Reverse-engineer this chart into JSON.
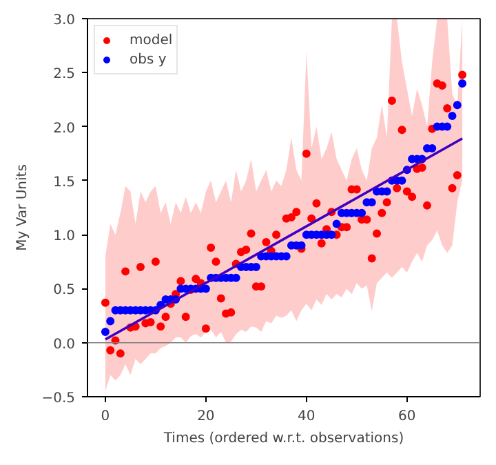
{
  "chart_data": {
    "type": "scatter",
    "xlabel": "Times (ordered w.r.t. observations)",
    "ylabel": "My Var Units",
    "x": [
      0,
      1,
      2,
      3,
      4,
      5,
      6,
      7,
      8,
      9,
      10,
      11,
      12,
      13,
      14,
      15,
      16,
      17,
      18,
      19,
      20,
      21,
      22,
      23,
      24,
      25,
      26,
      27,
      28,
      29,
      30,
      31,
      32,
      33,
      34,
      35,
      36,
      37,
      38,
      39,
      40,
      41,
      42,
      43,
      44,
      45,
      46,
      47,
      48,
      49,
      50,
      51,
      52,
      53,
      54,
      55,
      56,
      57,
      58,
      59,
      60,
      61,
      62,
      63,
      64,
      65,
      66,
      67,
      68,
      69,
      70,
      71
    ],
    "xlim": [
      -3.55,
      74.55
    ],
    "xticks": [
      0,
      20,
      40,
      60
    ],
    "ylim": [
      -0.5,
      3.0
    ],
    "yticks": [
      {
        "value": -0.5,
        "label": "−0.5"
      },
      {
        "value": 0,
        "label": "0.0"
      },
      {
        "value": 0.5,
        "label": "0.5"
      },
      {
        "value": 1,
        "label": "1.0"
      },
      {
        "value": 1.5,
        "label": "1.5"
      },
      {
        "value": 2,
        "label": "2.0"
      },
      {
        "value": 2.5,
        "label": "2.5"
      },
      {
        "value": 3,
        "label": "3.0"
      }
    ],
    "grid": false,
    "legend": "top left",
    "marker": "circle",
    "ref_lines": [
      {
        "axis": "y",
        "value": 0,
        "color": "#808080"
      }
    ],
    "series": [
      {
        "name": "model",
        "color": "#ff0000",
        "values": [
          0.37,
          -0.07,
          0.02,
          -0.1,
          0.66,
          0.14,
          0.15,
          0.7,
          0.18,
          0.19,
          0.75,
          0.15,
          0.24,
          0.36,
          0.45,
          0.57,
          0.24,
          0.49,
          0.59,
          0.55,
          0.13,
          0.88,
          0.75,
          0.41,
          0.27,
          0.28,
          0.73,
          0.84,
          0.86,
          1.01,
          0.52,
          0.52,
          0.93,
          0.85,
          1.0,
          null,
          1.15,
          1.16,
          1.21,
          0.87,
          1.75,
          1.15,
          1.29,
          0.92,
          1.05,
          1.21,
          1.0,
          1.07,
          1.07,
          1.42,
          1.42,
          1.14,
          1.14,
          0.78,
          1.01,
          1.2,
          1.3,
          2.24,
          1.43,
          1.97,
          1.4,
          1.35,
          1.61,
          1.62,
          1.27,
          1.98,
          2.4,
          2.38,
          2.17,
          1.43,
          1.55,
          2.48
        ],
        "upper": [
          0.8,
          1.1,
          1.0,
          1.2,
          1.45,
          1.4,
          1.1,
          1.4,
          1.3,
          1.4,
          1.45,
          1.2,
          1.3,
          1.1,
          1.3,
          1.2,
          1.35,
          1.2,
          1.3,
          1.2,
          1.4,
          1.5,
          1.3,
          1.4,
          1.5,
          1.3,
          1.6,
          1.4,
          1.5,
          1.7,
          1.4,
          1.5,
          1.6,
          1.4,
          1.5,
          1.45,
          1.6,
          1.9,
          1.6,
          1.5,
          2.7,
          1.8,
          2.0,
          1.7,
          1.8,
          1.95,
          1.7,
          1.6,
          1.5,
          1.7,
          1.8,
          1.6,
          1.5,
          1.8,
          1.9,
          2.2,
          1.9,
          3.0,
          3.0,
          2.6,
          2.35,
          2.1,
          2.35,
          2.2,
          2.0,
          2.6,
          3.0,
          3.0,
          3.0,
          2.3,
          2.2,
          3.0
        ],
        "lower": [
          -0.45,
          -0.3,
          -0.35,
          -0.3,
          -0.2,
          -0.3,
          -0.15,
          -0.2,
          -0.15,
          -0.1,
          -0.1,
          -0.05,
          -0.03,
          0.0,
          0.05,
          0.05,
          0.0,
          0.06,
          0.08,
          0.05,
          0.1,
          0.12,
          0.05,
          0.1,
          0.0,
          0.01,
          0.08,
          0.12,
          0.1,
          0.15,
          0.14,
          0.1,
          0.2,
          0.18,
          0.25,
          0.23,
          0.25,
          0.3,
          0.2,
          0.3,
          0.36,
          0.3,
          0.4,
          0.35,
          0.45,
          0.4,
          0.45,
          0.42,
          0.5,
          0.45,
          0.55,
          0.5,
          0.53,
          0.29,
          0.55,
          0.6,
          0.65,
          0.6,
          0.65,
          0.7,
          0.65,
          0.75,
          0.83,
          0.75,
          0.9,
          0.95,
          1.04,
          0.9,
          0.83,
          0.9,
          1.3,
          1.5
        ]
      },
      {
        "name": "obs y",
        "color": "#0000ff",
        "values": [
          0.1,
          0.2,
          0.3,
          0.3,
          0.3,
          0.3,
          0.3,
          0.3,
          0.3,
          0.3,
          0.3,
          0.35,
          0.4,
          0.4,
          0.4,
          0.5,
          0.5,
          0.5,
          0.5,
          0.5,
          0.5,
          0.6,
          0.6,
          0.6,
          0.6,
          0.6,
          0.6,
          0.7,
          0.7,
          0.7,
          0.7,
          0.8,
          0.8,
          0.8,
          0.8,
          0.8,
          0.8,
          0.9,
          0.9,
          0.9,
          1.0,
          1.0,
          1.0,
          1.0,
          1.0,
          1.0,
          1.1,
          1.2,
          1.2,
          1.2,
          1.2,
          1.2,
          1.3,
          1.3,
          1.4,
          1.4,
          1.4,
          1.5,
          1.5,
          1.5,
          1.6,
          1.7,
          1.7,
          1.7,
          1.8,
          1.8,
          2.0,
          2.0,
          2.0,
          2.1,
          2.2,
          2.4
        ]
      },
      {
        "type": "line",
        "marker": "none",
        "color": "#4000c0",
        "x": [
          0,
          71
        ],
        "values": [
          0.03,
          1.89
        ]
      }
    ]
  }
}
